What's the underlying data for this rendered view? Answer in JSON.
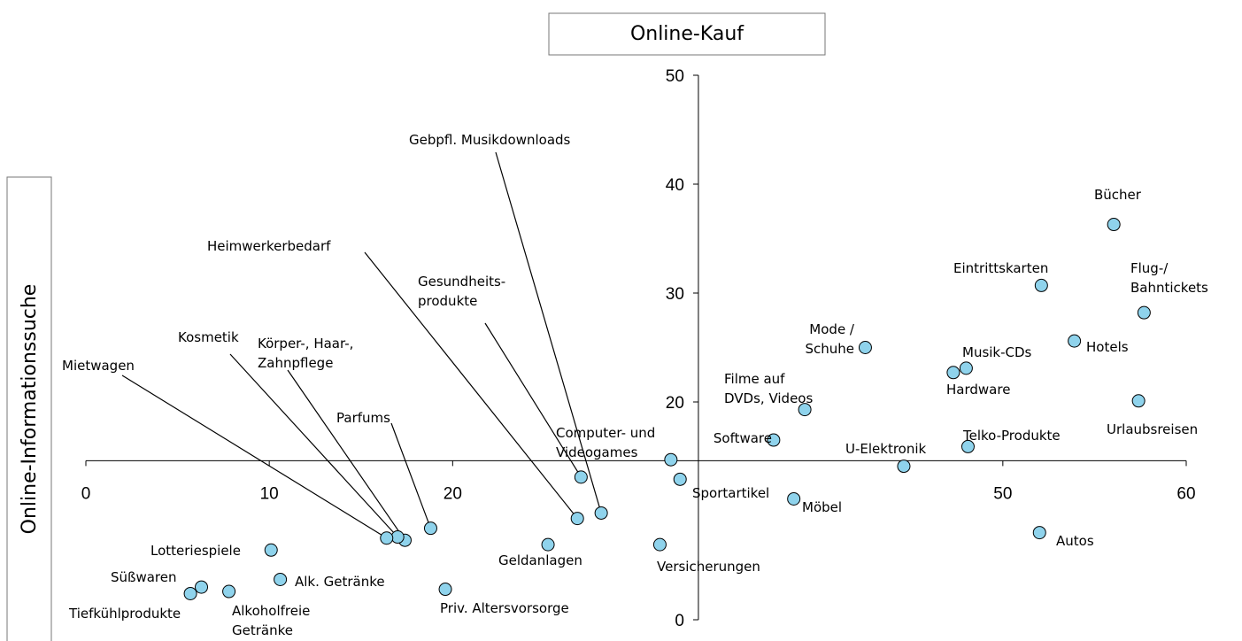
{
  "chart_data": {
    "type": "scatter",
    "ylabel": "Online-Kauf",
    "xlabel": "Online-Informationssuche",
    "xlim": [
      0,
      60
    ],
    "ylim": [
      0,
      50
    ],
    "xticks": [
      0,
      10,
      20,
      50,
      60
    ],
    "yticks": [
      0,
      20,
      30,
      40,
      50
    ],
    "x_axis_crosses_y": 14.6,
    "y_axis_crosses_x": 33.4,
    "color": "#8fd3ec",
    "labels": [
      [
        "Bücher"
      ],
      [
        "Eintrittskarten"
      ],
      [
        "Flug-/",
        "Bahntickets"
      ],
      [
        "Hotels"
      ],
      [
        "Musik-CDs"
      ],
      [
        "Hardware"
      ],
      [
        "Mode /",
        "Schuhe"
      ],
      [
        "Urlaubsreisen"
      ],
      [
        "Filme auf",
        "DVDs, Videos"
      ],
      [
        "Software"
      ],
      [
        "Telko-Produkte"
      ],
      [
        "U-Elektronik"
      ],
      [
        "Computer- und",
        "Videogames"
      ],
      [
        "Sportartikel"
      ],
      [
        "Möbel"
      ],
      [
        "Autos"
      ],
      [
        "Versicherungen"
      ],
      [
        "Gebpfl. Musikdownloads"
      ],
      [
        "Gesundheits-",
        "produkte"
      ],
      [
        "Heimwerkerbedarf"
      ],
      [
        "Geldanlagen"
      ],
      [
        "Priv. Altersvorsorge"
      ],
      [
        "Parfums"
      ],
      [
        "Körper-, Haar-,",
        "Zahnpflege"
      ],
      [
        "Kosmetik"
      ],
      [
        "Mietwagen"
      ],
      [
        "Lotteriespiele"
      ],
      [
        "Alk. Getränke"
      ],
      [
        "Süßwaren"
      ],
      [
        "Alkoholfreie",
        "Getränke"
      ],
      [
        "Tiefkühlprodukte"
      ]
    ],
    "x": [
      56.05,
      52.1,
      57.7,
      53.9,
      48.0,
      47.3,
      42.5,
      57.4,
      39.2,
      37.5,
      48.1,
      44.6,
      31.9,
      32.4,
      38.6,
      52.0,
      31.3,
      28.1,
      27.0,
      26.8,
      25.2,
      19.6,
      18.8,
      17.4,
      17.0,
      16.4,
      10.1,
      10.6,
      6.3,
      7.8,
      5.7
    ],
    "values": [
      36.3,
      30.7,
      28.2,
      25.6,
      23.1,
      22.7,
      25.0,
      20.1,
      19.3,
      16.5,
      15.9,
      14.1,
      14.7,
      12.9,
      11.1,
      8.0,
      6.9,
      9.8,
      13.1,
      9.3,
      6.9,
      2.8,
      8.4,
      7.3,
      7.6,
      7.5,
      6.4,
      3.7,
      3.0,
      2.6,
      2.4
    ]
  }
}
